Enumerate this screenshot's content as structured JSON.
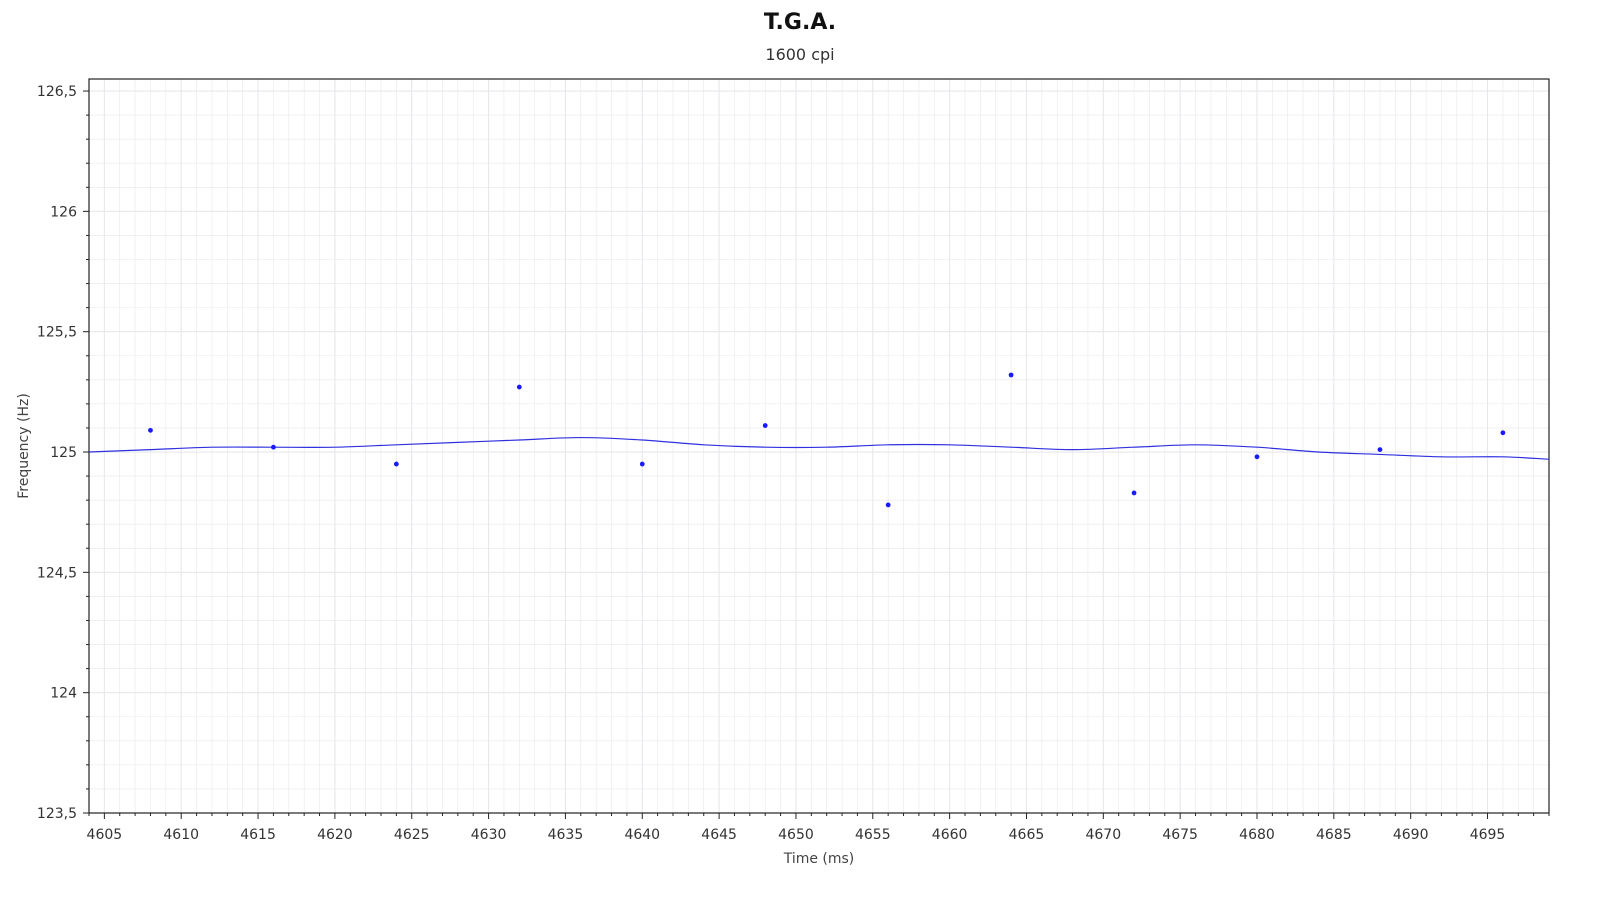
{
  "chart_data": {
    "type": "scatter",
    "title": "T.G.A.",
    "subtitle": "1600 cpi",
    "xlabel": "Time (ms)",
    "ylabel": "Frequency (Hz)",
    "xlim": [
      4604,
      4699
    ],
    "ylim": [
      123.5,
      126.55
    ],
    "x_ticks": [
      4605,
      4610,
      4615,
      4620,
      4625,
      4630,
      4635,
      4640,
      4645,
      4650,
      4655,
      4660,
      4665,
      4670,
      4675,
      4680,
      4685,
      4690,
      4695
    ],
    "y_ticks": [
      123.5,
      124,
      124.5,
      125,
      125.5,
      126,
      126.5
    ],
    "y_tick_labels": [
      "123,5",
      "124",
      "124,5",
      "125",
      "125,5",
      "126",
      "126,5"
    ],
    "grid": true,
    "colors": {
      "points": "#1a1aff",
      "line": "#3030e0",
      "grid": "#e8e8ec",
      "axis": "#222222"
    },
    "series": [
      {
        "kind": "points",
        "x": [
          4608,
          4616,
          4624,
          4632,
          4640,
          4648,
          4656,
          4664,
          4672,
          4680,
          4688,
          4696
        ],
        "y": [
          125.09,
          125.02,
          124.95,
          125.27,
          124.95,
          125.11,
          124.78,
          125.32,
          124.83,
          124.98,
          125.01,
          125.08
        ]
      },
      {
        "kind": "line",
        "x": [
          4604,
          4608,
          4612,
          4616,
          4620,
          4624,
          4628,
          4632,
          4636,
          4640,
          4644,
          4648,
          4652,
          4656,
          4660,
          4664,
          4668,
          4672,
          4676,
          4680,
          4684,
          4688,
          4692,
          4696,
          4699
        ],
        "y": [
          125.0,
          125.01,
          125.02,
          125.02,
          125.02,
          125.03,
          125.04,
          125.05,
          125.06,
          125.05,
          125.03,
          125.02,
          125.02,
          125.03,
          125.03,
          125.02,
          125.01,
          125.02,
          125.03,
          125.02,
          125.0,
          124.99,
          124.98,
          124.98,
          124.97
        ]
      }
    ]
  }
}
